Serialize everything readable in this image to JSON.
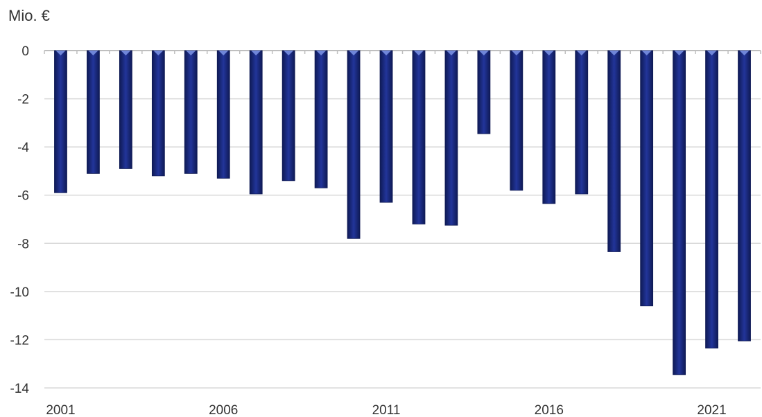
{
  "chart_data": {
    "type": "bar",
    "unit_label": "Mio. €",
    "categories": [
      "2001",
      "2002",
      "2003",
      "2004",
      "2005",
      "2006",
      "2007",
      "2008",
      "2009",
      "2010",
      "2011",
      "2012",
      "2013",
      "2014",
      "2015",
      "2016",
      "2017",
      "2018",
      "2019",
      "2020",
      "2021",
      "2022"
    ],
    "x_tick_labels": [
      "2001",
      "2006",
      "2011",
      "2016",
      "2021"
    ],
    "values": [
      -5.9,
      -5.1,
      -4.9,
      -5.2,
      -5.1,
      -5.3,
      -5.95,
      -5.4,
      -5.7,
      -7.8,
      -6.3,
      -7.2,
      -7.25,
      -3.45,
      -5.8,
      -6.35,
      -5.95,
      -8.35,
      -10.6,
      -13.45,
      -12.35,
      -12.05
    ],
    "ylim": [
      -14,
      0
    ],
    "y_ticks": [
      0,
      -2,
      -4,
      -6,
      -8,
      -10,
      -12,
      -14
    ],
    "grid": true,
    "colors": {
      "bar": "#1b2a7a",
      "bar_dark": "#0f1a55",
      "bar_light": "#2e44a8",
      "grid": "#d9d9d9",
      "axis": "#bfbfbf"
    }
  }
}
